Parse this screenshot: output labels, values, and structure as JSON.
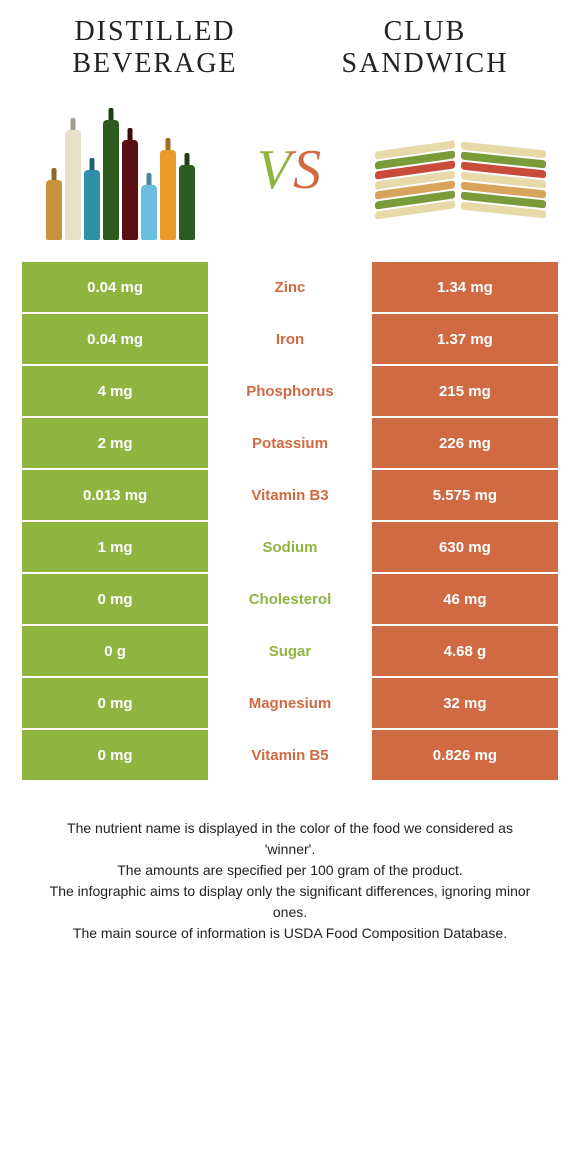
{
  "colors": {
    "left_food": "#8fb541",
    "right_food": "#d06a42",
    "text": "#333333"
  },
  "left": {
    "title": "DISTILLED\nBEVERAGE"
  },
  "right": {
    "title": "CLUB\nSANDWICH"
  },
  "vs_label": "VS",
  "rows": [
    {
      "nutrient": "Zinc",
      "left": "0.04 mg",
      "right": "1.34 mg",
      "winner": "right"
    },
    {
      "nutrient": "Iron",
      "left": "0.04 mg",
      "right": "1.37 mg",
      "winner": "right"
    },
    {
      "nutrient": "Phosphorus",
      "left": "4 mg",
      "right": "215 mg",
      "winner": "right"
    },
    {
      "nutrient": "Potassium",
      "left": "2 mg",
      "right": "226 mg",
      "winner": "right"
    },
    {
      "nutrient": "Vitamin B3",
      "left": "0.013 mg",
      "right": "5.575 mg",
      "winner": "right"
    },
    {
      "nutrient": "Sodium",
      "left": "1 mg",
      "right": "630 mg",
      "winner": "left"
    },
    {
      "nutrient": "Cholesterol",
      "left": "0 mg",
      "right": "46 mg",
      "winner": "left"
    },
    {
      "nutrient": "Sugar",
      "left": "0 g",
      "right": "4.68 g",
      "winner": "left"
    },
    {
      "nutrient": "Magnesium",
      "left": "0 mg",
      "right": "32 mg",
      "winner": "right"
    },
    {
      "nutrient": "Vitamin B5",
      "left": "0 mg",
      "right": "0.826 mg",
      "winner": "right"
    }
  ],
  "footer": [
    "The nutrient name is displayed in the color of the food we considered as 'winner'.",
    "The amounts are specified per 100 gram of the product.",
    "The infographic aims to display only the significant differences, ignoring minor ones.",
    "The main source of information is USDA Food Composition Database."
  ],
  "bottle_colors": [
    "#c9913b",
    "#e6e0c8",
    "#2e8fa8",
    "#2c5a1f",
    "#5a0f14",
    "#6dbde0",
    "#e89a2b",
    "#2c5a1f"
  ],
  "bottle_heights": [
    60,
    110,
    70,
    120,
    100,
    55,
    90,
    75
  ],
  "sandwich_layers": [
    "#e7d9a8",
    "#7a9b3a",
    "#c94b3b",
    "#e7d9a8",
    "#d8a35a",
    "#7a9b3a",
    "#e7d9a8"
  ]
}
